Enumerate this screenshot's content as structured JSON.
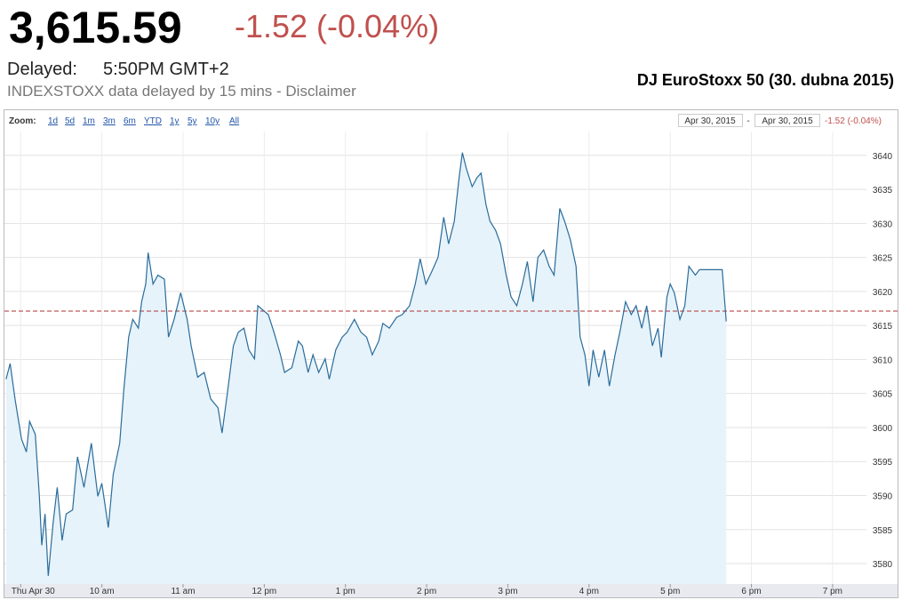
{
  "header": {
    "price": "3,615.59",
    "change": "-1.52 (-0.04%)",
    "delayed_label": "Delayed:",
    "time": "5:50PM GMT+2",
    "disclaimer": "INDEXSTOXX data delayed by 15 mins - Disclaimer",
    "caption": "DJ EuroStoxx 50 (30. dubna 2015)"
  },
  "toolbar": {
    "zoom_label": "Zoom:",
    "zoom_options": [
      "1d",
      "5d",
      "1m",
      "3m",
      "6m",
      "YTD",
      "1y",
      "5y",
      "10y",
      "All"
    ],
    "range_start": "Apr 30, 2015",
    "range_separator": "-",
    "range_end": "Apr 30, 2015",
    "range_change": "-1.52 (-0.04%)"
  },
  "chart_data": {
    "type": "line",
    "color": "#2a6c9a",
    "fill_color": "#e6f3fb",
    "reference_line": 3617.11,
    "reference_color": "#b03030",
    "grid": true,
    "xlim": [
      8.8,
      19.8
    ],
    "ylim": [
      3577,
      3643.5
    ],
    "xticks": [
      {
        "value": 9,
        "label": "Thu Apr 30"
      },
      {
        "value": 10,
        "label": "10 am"
      },
      {
        "value": 11,
        "label": "11 am"
      },
      {
        "value": 12,
        "label": "12 pm"
      },
      {
        "value": 13,
        "label": "1 pm"
      },
      {
        "value": 14,
        "label": "2 pm"
      },
      {
        "value": 15,
        "label": "3 pm"
      },
      {
        "value": 16,
        "label": "4 pm"
      },
      {
        "value": 17,
        "label": "5 pm"
      },
      {
        "value": 18,
        "label": "6 pm"
      },
      {
        "value": 19,
        "label": "7 pm"
      }
    ],
    "yticks": [
      3580,
      3585,
      3590,
      3595,
      3600,
      3605,
      3610,
      3615,
      3620,
      3625,
      3630,
      3635,
      3640
    ],
    "x": [
      8.82,
      8.87,
      8.93,
      9.01,
      9.07,
      9.11,
      9.18,
      9.23,
      9.26,
      9.3,
      9.34,
      9.4,
      9.45,
      9.51,
      9.56,
      9.64,
      9.7,
      9.78,
      9.87,
      9.95,
      10.0,
      10.08,
      10.14,
      10.22,
      10.27,
      10.33,
      10.38,
      10.45,
      10.49,
      10.54,
      10.57,
      10.63,
      10.69,
      10.77,
      10.82,
      10.89,
      10.97,
      11.05,
      11.1,
      11.18,
      11.26,
      11.34,
      11.43,
      11.48,
      11.55,
      11.62,
      11.68,
      11.75,
      11.81,
      11.88,
      11.92,
      11.99,
      12.05,
      12.12,
      12.2,
      12.25,
      12.34,
      12.42,
      12.47,
      12.54,
      12.6,
      12.67,
      12.75,
      12.8,
      12.88,
      12.96,
      13.02,
      13.11,
      13.19,
      13.26,
      13.33,
      13.41,
      13.46,
      13.54,
      13.63,
      13.7,
      13.79,
      13.86,
      13.92,
      13.99,
      14.07,
      14.14,
      14.21,
      14.27,
      14.34,
      14.4,
      14.44,
      14.49,
      14.56,
      14.62,
      14.67,
      14.73,
      14.78,
      14.85,
      14.91,
      14.98,
      15.04,
      15.11,
      15.18,
      15.24,
      15.31,
      15.37,
      15.44,
      15.51,
      15.57,
      15.64,
      15.7,
      15.77,
      15.84,
      15.89,
      15.95,
      16.0,
      16.05,
      16.12,
      16.19,
      16.25,
      16.32,
      16.38,
      16.45,
      16.52,
      16.58,
      16.65,
      16.71,
      16.78,
      16.85,
      16.89,
      16.96,
      17.0,
      17.05,
      17.12,
      17.18,
      17.23,
      17.31,
      17.36,
      17.64,
      17.69
    ],
    "values": [
      3607.1,
      3609.4,
      3604.2,
      3598.3,
      3596.4,
      3600.9,
      3599.0,
      3589.9,
      3582.7,
      3587.3,
      3578.2,
      3586.0,
      3591.2,
      3583.4,
      3587.3,
      3587.9,
      3595.7,
      3591.2,
      3597.7,
      3589.9,
      3591.8,
      3585.3,
      3593.1,
      3597.7,
      3605.5,
      3613.3,
      3615.9,
      3614.6,
      3618.5,
      3621.1,
      3625.7,
      3621.1,
      3622.4,
      3621.8,
      3613.3,
      3615.9,
      3619.8,
      3615.9,
      3612.0,
      3607.4,
      3608.1,
      3604.2,
      3602.9,
      3599.2,
      3605.5,
      3612.0,
      3614.0,
      3614.6,
      3611.4,
      3610.1,
      3617.9,
      3617.2,
      3616.6,
      3614.0,
      3610.7,
      3608.1,
      3608.8,
      3612.7,
      3612.0,
      3608.1,
      3610.7,
      3608.1,
      3610.1,
      3607.1,
      3611.4,
      3613.3,
      3614.0,
      3615.9,
      3614.0,
      3613.3,
      3610.7,
      3612.7,
      3615.3,
      3614.6,
      3616.2,
      3616.6,
      3617.9,
      3621.1,
      3624.8,
      3621.1,
      3623.1,
      3625.0,
      3630.9,
      3627.0,
      3630.3,
      3636.7,
      3640.4,
      3638.0,
      3635.4,
      3636.7,
      3637.4,
      3632.8,
      3630.3,
      3629.0,
      3627.0,
      3622.4,
      3619.2,
      3617.9,
      3621.1,
      3624.4,
      3618.5,
      3625.0,
      3626.1,
      3623.7,
      3622.4,
      3632.2,
      3630.3,
      3627.6,
      3623.7,
      3613.3,
      3610.7,
      3606.1,
      3611.4,
      3607.4,
      3611.4,
      3606.1,
      3610.7,
      3614.0,
      3618.5,
      3616.6,
      3617.9,
      3614.6,
      3617.9,
      3612.0,
      3614.6,
      3610.3,
      3619.2,
      3621.1,
      3619.8,
      3615.9,
      3617.9,
      3623.7,
      3622.4,
      3623.2,
      3623.2,
      3615.59
    ]
  }
}
